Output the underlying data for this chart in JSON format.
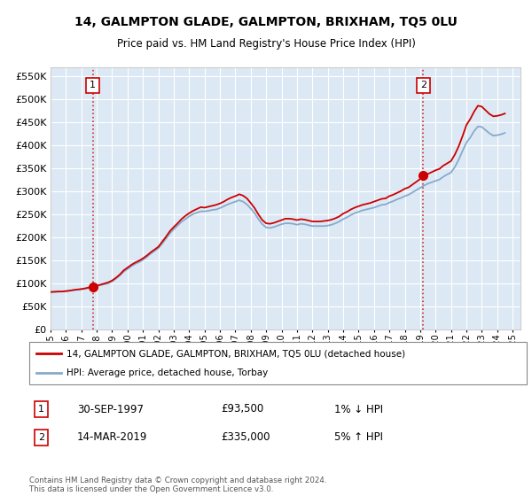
{
  "title": "14, GALMPTON GLADE, GALMPTON, BRIXHAM, TQ5 0LU",
  "subtitle": "Price paid vs. HM Land Registry's House Price Index (HPI)",
  "bg_color": "#dce9f5",
  "red_line_color": "#cc0000",
  "blue_line_color": "#88aacc",
  "marker_color": "#cc0000",
  "marker_box_color": "#cc0000",
  "ylim_top": 570000,
  "xlim_start": 1995.0,
  "xlim_end": 2025.5,
  "yticks": [
    0,
    50000,
    100000,
    150000,
    200000,
    250000,
    300000,
    350000,
    400000,
    450000,
    500000,
    550000
  ],
  "xticks": [
    1995,
    1996,
    1997,
    1998,
    1999,
    2000,
    2001,
    2002,
    2003,
    2004,
    2005,
    2006,
    2007,
    2008,
    2009,
    2010,
    2011,
    2012,
    2013,
    2014,
    2015,
    2016,
    2017,
    2018,
    2019,
    2020,
    2021,
    2022,
    2023,
    2024,
    2025
  ],
  "sale1_x": 1997.75,
  "sale1_y": 93500,
  "sale1_label": "1",
  "sale2_x": 2019.2,
  "sale2_y": 335000,
  "sale2_label": "2",
  "legend_line1": "14, GALMPTON GLADE, GALMPTON, BRIXHAM, TQ5 0LU (detached house)",
  "legend_line2": "HPI: Average price, detached house, Torbay",
  "ann1_label": "1",
  "ann1_date": "30-SEP-1997",
  "ann1_price": "£93,500",
  "ann1_hpi": "1% ↓ HPI",
  "ann2_label": "2",
  "ann2_date": "14-MAR-2019",
  "ann2_price": "£335,000",
  "ann2_hpi": "5% ↑ HPI",
  "footer": "Contains HM Land Registry data © Crown copyright and database right 2024.\nThis data is licensed under the Open Government Licence v3.0.",
  "hpi_data_x": [
    1995.0,
    1995.25,
    1995.5,
    1995.75,
    1996.0,
    1996.25,
    1996.5,
    1996.75,
    1997.0,
    1997.25,
    1997.5,
    1997.75,
    1998.0,
    1998.25,
    1998.5,
    1998.75,
    1999.0,
    1999.25,
    1999.5,
    1999.75,
    2000.0,
    2000.25,
    2000.5,
    2000.75,
    2001.0,
    2001.25,
    2001.5,
    2001.75,
    2002.0,
    2002.25,
    2002.5,
    2002.75,
    2003.0,
    2003.25,
    2003.5,
    2003.75,
    2004.0,
    2004.25,
    2004.5,
    2004.75,
    2005.0,
    2005.25,
    2005.5,
    2005.75,
    2006.0,
    2006.25,
    2006.5,
    2006.75,
    2007.0,
    2007.25,
    2007.5,
    2007.75,
    2008.0,
    2008.25,
    2008.5,
    2008.75,
    2009.0,
    2009.25,
    2009.5,
    2009.75,
    2010.0,
    2010.25,
    2010.5,
    2010.75,
    2011.0,
    2011.25,
    2011.5,
    2011.75,
    2012.0,
    2012.25,
    2012.5,
    2012.75,
    2013.0,
    2013.25,
    2013.5,
    2013.75,
    2014.0,
    2014.25,
    2014.5,
    2014.75,
    2015.0,
    2015.25,
    2015.5,
    2015.75,
    2016.0,
    2016.25,
    2016.5,
    2016.75,
    2017.0,
    2017.25,
    2017.5,
    2017.75,
    2018.0,
    2018.25,
    2018.5,
    2018.75,
    2019.0,
    2019.25,
    2019.5,
    2019.75,
    2020.0,
    2020.25,
    2020.5,
    2020.75,
    2021.0,
    2021.25,
    2021.5,
    2021.75,
    2022.0,
    2022.25,
    2022.5,
    2022.75,
    2023.0,
    2023.25,
    2023.5,
    2023.75,
    2024.0,
    2024.25,
    2024.5
  ],
  "hpi_data_y": [
    82000,
    82500,
    83000,
    83500,
    84000,
    85000,
    86000,
    87000,
    88000,
    89000,
    91000,
    93000,
    95000,
    97000,
    99000,
    101000,
    105000,
    111000,
    118000,
    126000,
    132000,
    138000,
    143000,
    147000,
    152000,
    158000,
    165000,
    171000,
    177000,
    187000,
    198000,
    209000,
    218000,
    226000,
    234000,
    240000,
    246000,
    251000,
    254000,
    257000,
    257000,
    258000,
    260000,
    261000,
    264000,
    268000,
    272000,
    275000,
    278000,
    281000,
    278000,
    272000,
    263000,
    253000,
    240000,
    229000,
    222000,
    221000,
    223000,
    226000,
    229000,
    231000,
    231000,
    230000,
    228000,
    230000,
    229000,
    227000,
    225000,
    225000,
    225000,
    225000,
    226000,
    228000,
    231000,
    235000,
    240000,
    244000,
    249000,
    253000,
    256000,
    259000,
    261000,
    263000,
    265000,
    268000,
    271000,
    272000,
    276000,
    279000,
    283000,
    286000,
    290000,
    293000,
    298000,
    303000,
    308000,
    313000,
    317000,
    320000,
    323000,
    326000,
    332000,
    337000,
    341000,
    353000,
    369000,
    388000,
    406000,
    417000,
    431000,
    441000,
    440000,
    433000,
    426000,
    421000,
    422000,
    424000,
    427000
  ],
  "sale_line_x": [
    1995.0,
    1995.25,
    1995.5,
    1995.75,
    1996.0,
    1996.25,
    1996.5,
    1996.75,
    1997.0,
    1997.25,
    1997.5,
    1997.75,
    1998.0,
    1998.25,
    1998.5,
    1998.75,
    1999.0,
    1999.25,
    1999.5,
    1999.75,
    2000.0,
    2000.25,
    2000.5,
    2000.75,
    2001.0,
    2001.25,
    2001.5,
    2001.75,
    2002.0,
    2002.25,
    2002.5,
    2002.75,
    2003.0,
    2003.25,
    2003.5,
    2003.75,
    2004.0,
    2004.25,
    2004.5,
    2004.75,
    2005.0,
    2005.25,
    2005.5,
    2005.75,
    2006.0,
    2006.25,
    2006.5,
    2006.75,
    2007.0,
    2007.25,
    2007.5,
    2007.75,
    2008.0,
    2008.25,
    2008.5,
    2008.75,
    2009.0,
    2009.25,
    2009.5,
    2009.75,
    2010.0,
    2010.25,
    2010.5,
    2010.75,
    2011.0,
    2011.25,
    2011.5,
    2011.75,
    2012.0,
    2012.25,
    2012.5,
    2012.75,
    2013.0,
    2013.25,
    2013.5,
    2013.75,
    2014.0,
    2014.25,
    2014.5,
    2014.75,
    2015.0,
    2015.25,
    2015.5,
    2015.75,
    2016.0,
    2016.25,
    2016.5,
    2016.75,
    2017.0,
    2017.25,
    2017.5,
    2017.75,
    2018.0,
    2018.25,
    2018.5,
    2018.75,
    2019.0,
    2019.25,
    2019.5,
    2019.75,
    2020.0,
    2020.25,
    2020.5,
    2020.75,
    2021.0,
    2021.25,
    2021.5,
    2021.75,
    2022.0,
    2022.25,
    2022.5,
    2022.75,
    2023.0,
    2023.25,
    2023.5,
    2023.75,
    2024.0,
    2024.25,
    2024.5
  ],
  "sale_line_y": [
    82000,
    82500,
    83000,
    83000,
    84000,
    85000,
    86500,
    87500,
    88500,
    90000,
    92000,
    93500,
    96000,
    98000,
    100500,
    103000,
    107000,
    113000,
    120000,
    129000,
    135000,
    141000,
    146000,
    150000,
    155000,
    161000,
    168000,
    174000,
    180000,
    191000,
    202000,
    214000,
    223000,
    231000,
    240000,
    247000,
    253000,
    258000,
    262000,
    266000,
    265000,
    267000,
    269000,
    271000,
    274000,
    278000,
    283000,
    287000,
    290000,
    294000,
    291000,
    285000,
    275000,
    264000,
    250000,
    238000,
    231000,
    230000,
    232000,
    235000,
    238000,
    241000,
    241000,
    240000,
    238000,
    240000,
    239000,
    237000,
    235000,
    235000,
    235000,
    236000,
    237000,
    239000,
    242000,
    246000,
    252000,
    256000,
    261000,
    265000,
    268000,
    271000,
    273000,
    275000,
    278000,
    281000,
    284000,
    285000,
    290000,
    293000,
    297000,
    301000,
    306000,
    309000,
    315000,
    321000,
    327000,
    333000,
    338000,
    342000,
    346000,
    349000,
    356000,
    361000,
    366000,
    380000,
    398000,
    420000,
    444000,
    457000,
    473000,
    486000,
    484000,
    476000,
    468000,
    463000,
    464000,
    466000,
    469000
  ]
}
